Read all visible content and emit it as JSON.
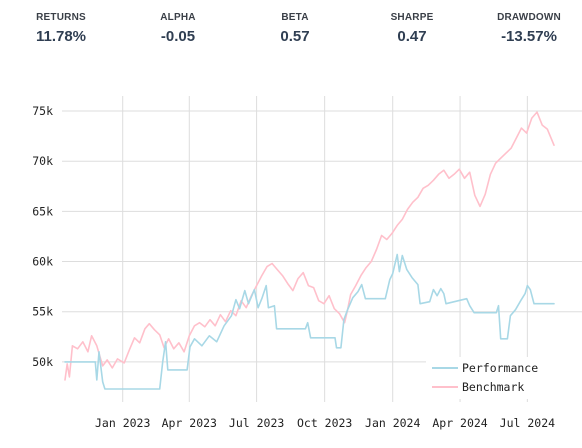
{
  "stats": [
    {
      "label": "RETURNS",
      "value": "11.78%"
    },
    {
      "label": "ALPHA",
      "value": "-0.05"
    },
    {
      "label": "BETA",
      "value": "0.57"
    },
    {
      "label": "SHARPE",
      "value": "0.47"
    },
    {
      "label": "DRAWDOWN",
      "value": "-13.57%"
    }
  ],
  "colors": {
    "performance": "#a8d8e6",
    "benchmark": "#ffc0cb",
    "grid": "#dddddd"
  },
  "chart_data": {
    "type": "line",
    "title": "",
    "xlabel": "",
    "ylabel": "",
    "xlim": [
      "2022-10-15",
      "2024-08-06"
    ],
    "ylim": [
      46000,
      76500
    ],
    "grid": true,
    "legend_position": "bottom-right",
    "y_ticks": [
      {
        "value": 50000,
        "label": "50k"
      },
      {
        "value": 55000,
        "label": "55k"
      },
      {
        "value": 60000,
        "label": "60k"
      },
      {
        "value": 65000,
        "label": "65k"
      },
      {
        "value": 70000,
        "label": "70k"
      },
      {
        "value": 75000,
        "label": "75k"
      }
    ],
    "x_ticks": [
      {
        "value": "2023-01-01",
        "label": "Jan 2023"
      },
      {
        "value": "2023-04-01",
        "label": "Apr 2023"
      },
      {
        "value": "2023-07-01",
        "label": "Jul 2023"
      },
      {
        "value": "2023-10-01",
        "label": "Oct 2023"
      },
      {
        "value": "2024-01-01",
        "label": "Jan 2024"
      },
      {
        "value": "2024-04-01",
        "label": "Apr 2024"
      },
      {
        "value": "2024-07-01",
        "label": "Jul 2024"
      }
    ],
    "series": [
      {
        "name": "Performance",
        "color": "#a8d8e6",
        "points": [
          [
            "2022-10-15",
            50000
          ],
          [
            "2022-11-25",
            50000
          ],
          [
            "2022-11-27",
            48200
          ],
          [
            "2022-11-30",
            51000
          ],
          [
            "2022-12-05",
            48000
          ],
          [
            "2022-12-08",
            47300
          ],
          [
            "2023-02-20",
            47300
          ],
          [
            "2023-02-24",
            50000
          ],
          [
            "2023-02-28",
            52000
          ],
          [
            "2023-03-03",
            49200
          ],
          [
            "2023-03-29",
            49200
          ],
          [
            "2023-04-02",
            51500
          ],
          [
            "2023-04-08",
            52300
          ],
          [
            "2023-04-18",
            51600
          ],
          [
            "2023-04-28",
            52600
          ],
          [
            "2023-05-08",
            52000
          ],
          [
            "2023-05-18",
            53600
          ],
          [
            "2023-05-28",
            54600
          ],
          [
            "2023-06-03",
            56200
          ],
          [
            "2023-06-08",
            55300
          ],
          [
            "2023-06-15",
            57100
          ],
          [
            "2023-06-20",
            55800
          ],
          [
            "2023-06-28",
            57200
          ],
          [
            "2023-07-03",
            55400
          ],
          [
            "2023-07-08",
            56300
          ],
          [
            "2023-07-14",
            57600
          ],
          [
            "2023-07-17",
            55400
          ],
          [
            "2023-07-25",
            55600
          ],
          [
            "2023-07-28",
            53300
          ],
          [
            "2023-09-05",
            53300
          ],
          [
            "2023-09-08",
            53900
          ],
          [
            "2023-09-12",
            52400
          ],
          [
            "2023-10-05",
            52400
          ],
          [
            "2023-10-15",
            52400
          ],
          [
            "2023-10-17",
            51400
          ],
          [
            "2023-10-23",
            51400
          ],
          [
            "2023-10-27",
            54200
          ],
          [
            "2023-11-01",
            55200
          ],
          [
            "2023-11-08",
            56400
          ],
          [
            "2023-11-15",
            57000
          ],
          [
            "2023-11-20",
            57700
          ],
          [
            "2023-11-25",
            56300
          ],
          [
            "2023-12-22",
            56300
          ],
          [
            "2023-12-28",
            58200
          ],
          [
            "2024-01-01",
            58800
          ],
          [
            "2024-01-07",
            60700
          ],
          [
            "2024-01-10",
            59000
          ],
          [
            "2024-01-14",
            60600
          ],
          [
            "2024-01-20",
            59200
          ],
          [
            "2024-01-27",
            58400
          ],
          [
            "2024-02-04",
            57700
          ],
          [
            "2024-02-07",
            55800
          ],
          [
            "2024-02-20",
            56000
          ],
          [
            "2024-02-25",
            57200
          ],
          [
            "2024-03-01",
            56600
          ],
          [
            "2024-03-06",
            57300
          ],
          [
            "2024-03-10",
            56800
          ],
          [
            "2024-03-13",
            55800
          ],
          [
            "2024-04-10",
            56300
          ],
          [
            "2024-04-14",
            55600
          ],
          [
            "2024-04-20",
            54900
          ],
          [
            "2024-05-20",
            54900
          ],
          [
            "2024-05-23",
            55600
          ],
          [
            "2024-05-26",
            52300
          ],
          [
            "2024-06-04",
            52300
          ],
          [
            "2024-06-08",
            54600
          ],
          [
            "2024-06-15",
            55200
          ],
          [
            "2024-06-22",
            56100
          ],
          [
            "2024-06-28",
            56800
          ],
          [
            "2024-07-01",
            57600
          ],
          [
            "2024-07-05",
            57200
          ],
          [
            "2024-07-10",
            55800
          ],
          [
            "2024-08-06",
            55800
          ]
        ]
      },
      {
        "name": "Benchmark",
        "color": "#ffc0cb",
        "points": [
          [
            "2022-10-15",
            48200
          ],
          [
            "2022-10-18",
            49800
          ],
          [
            "2022-10-21",
            48500
          ],
          [
            "2022-10-25",
            51600
          ],
          [
            "2022-11-01",
            51300
          ],
          [
            "2022-11-08",
            52000
          ],
          [
            "2022-11-15",
            51000
          ],
          [
            "2022-11-20",
            52600
          ],
          [
            "2022-11-27",
            51600
          ],
          [
            "2022-12-05",
            49600
          ],
          [
            "2022-12-11",
            50200
          ],
          [
            "2022-12-18",
            49400
          ],
          [
            "2022-12-25",
            50300
          ],
          [
            "2023-01-03",
            49900
          ],
          [
            "2023-01-10",
            51200
          ],
          [
            "2023-01-17",
            52400
          ],
          [
            "2023-01-24",
            51900
          ],
          [
            "2023-01-31",
            53300
          ],
          [
            "2023-02-06",
            53800
          ],
          [
            "2023-02-13",
            53200
          ],
          [
            "2023-02-20",
            52700
          ],
          [
            "2023-02-26",
            51400
          ],
          [
            "2023-03-04",
            52300
          ],
          [
            "2023-03-11",
            51300
          ],
          [
            "2023-03-18",
            51900
          ],
          [
            "2023-03-25",
            51000
          ],
          [
            "2023-04-01",
            52600
          ],
          [
            "2023-04-08",
            53600
          ],
          [
            "2023-04-15",
            53900
          ],
          [
            "2023-04-22",
            53500
          ],
          [
            "2023-04-29",
            54200
          ],
          [
            "2023-05-06",
            53600
          ],
          [
            "2023-05-13",
            54700
          ],
          [
            "2023-05-20",
            54000
          ],
          [
            "2023-05-27",
            55100
          ],
          [
            "2023-06-03",
            54600
          ],
          [
            "2023-06-10",
            56100
          ],
          [
            "2023-06-17",
            55400
          ],
          [
            "2023-06-24",
            56600
          ],
          [
            "2023-07-01",
            57600
          ],
          [
            "2023-07-08",
            58600
          ],
          [
            "2023-07-15",
            59500
          ],
          [
            "2023-07-22",
            59800
          ],
          [
            "2023-07-29",
            59200
          ],
          [
            "2023-08-05",
            58600
          ],
          [
            "2023-08-12",
            57800
          ],
          [
            "2023-08-19",
            57100
          ],
          [
            "2023-08-26",
            58300
          ],
          [
            "2023-09-02",
            58900
          ],
          [
            "2023-09-09",
            57600
          ],
          [
            "2023-09-16",
            57400
          ],
          [
            "2023-09-23",
            56100
          ],
          [
            "2023-09-30",
            55800
          ],
          [
            "2023-10-07",
            56600
          ],
          [
            "2023-10-14",
            55300
          ],
          [
            "2023-10-21",
            54800
          ],
          [
            "2023-10-28",
            53900
          ],
          [
            "2023-11-01",
            55200
          ],
          [
            "2023-11-05",
            56700
          ],
          [
            "2023-11-12",
            57600
          ],
          [
            "2023-11-19",
            58600
          ],
          [
            "2023-11-26",
            59400
          ],
          [
            "2023-12-03",
            60000
          ],
          [
            "2023-12-10",
            61200
          ],
          [
            "2023-12-17",
            62600
          ],
          [
            "2023-12-24",
            62200
          ],
          [
            "2023-12-31",
            62800
          ],
          [
            "2024-01-07",
            63600
          ],
          [
            "2024-01-14",
            64200
          ],
          [
            "2024-01-21",
            65200
          ],
          [
            "2024-01-28",
            65900
          ],
          [
            "2024-02-04",
            66400
          ],
          [
            "2024-02-11",
            67300
          ],
          [
            "2024-02-18",
            67600
          ],
          [
            "2024-02-25",
            68100
          ],
          [
            "2024-03-03",
            68700
          ],
          [
            "2024-03-10",
            69100
          ],
          [
            "2024-03-17",
            68300
          ],
          [
            "2024-03-24",
            68700
          ],
          [
            "2024-03-31",
            69200
          ],
          [
            "2024-04-07",
            68300
          ],
          [
            "2024-04-14",
            68900
          ],
          [
            "2024-04-21",
            66600
          ],
          [
            "2024-04-28",
            65500
          ],
          [
            "2024-05-05",
            66700
          ],
          [
            "2024-05-12",
            68700
          ],
          [
            "2024-05-19",
            69800
          ],
          [
            "2024-05-26",
            70300
          ],
          [
            "2024-06-02",
            70800
          ],
          [
            "2024-06-09",
            71300
          ],
          [
            "2024-06-16",
            72300
          ],
          [
            "2024-06-23",
            73300
          ],
          [
            "2024-06-30",
            72800
          ],
          [
            "2024-07-07",
            74300
          ],
          [
            "2024-07-14",
            74900
          ],
          [
            "2024-07-21",
            73600
          ],
          [
            "2024-07-28",
            73200
          ],
          [
            "2024-08-06",
            71600
          ]
        ]
      }
    ]
  }
}
